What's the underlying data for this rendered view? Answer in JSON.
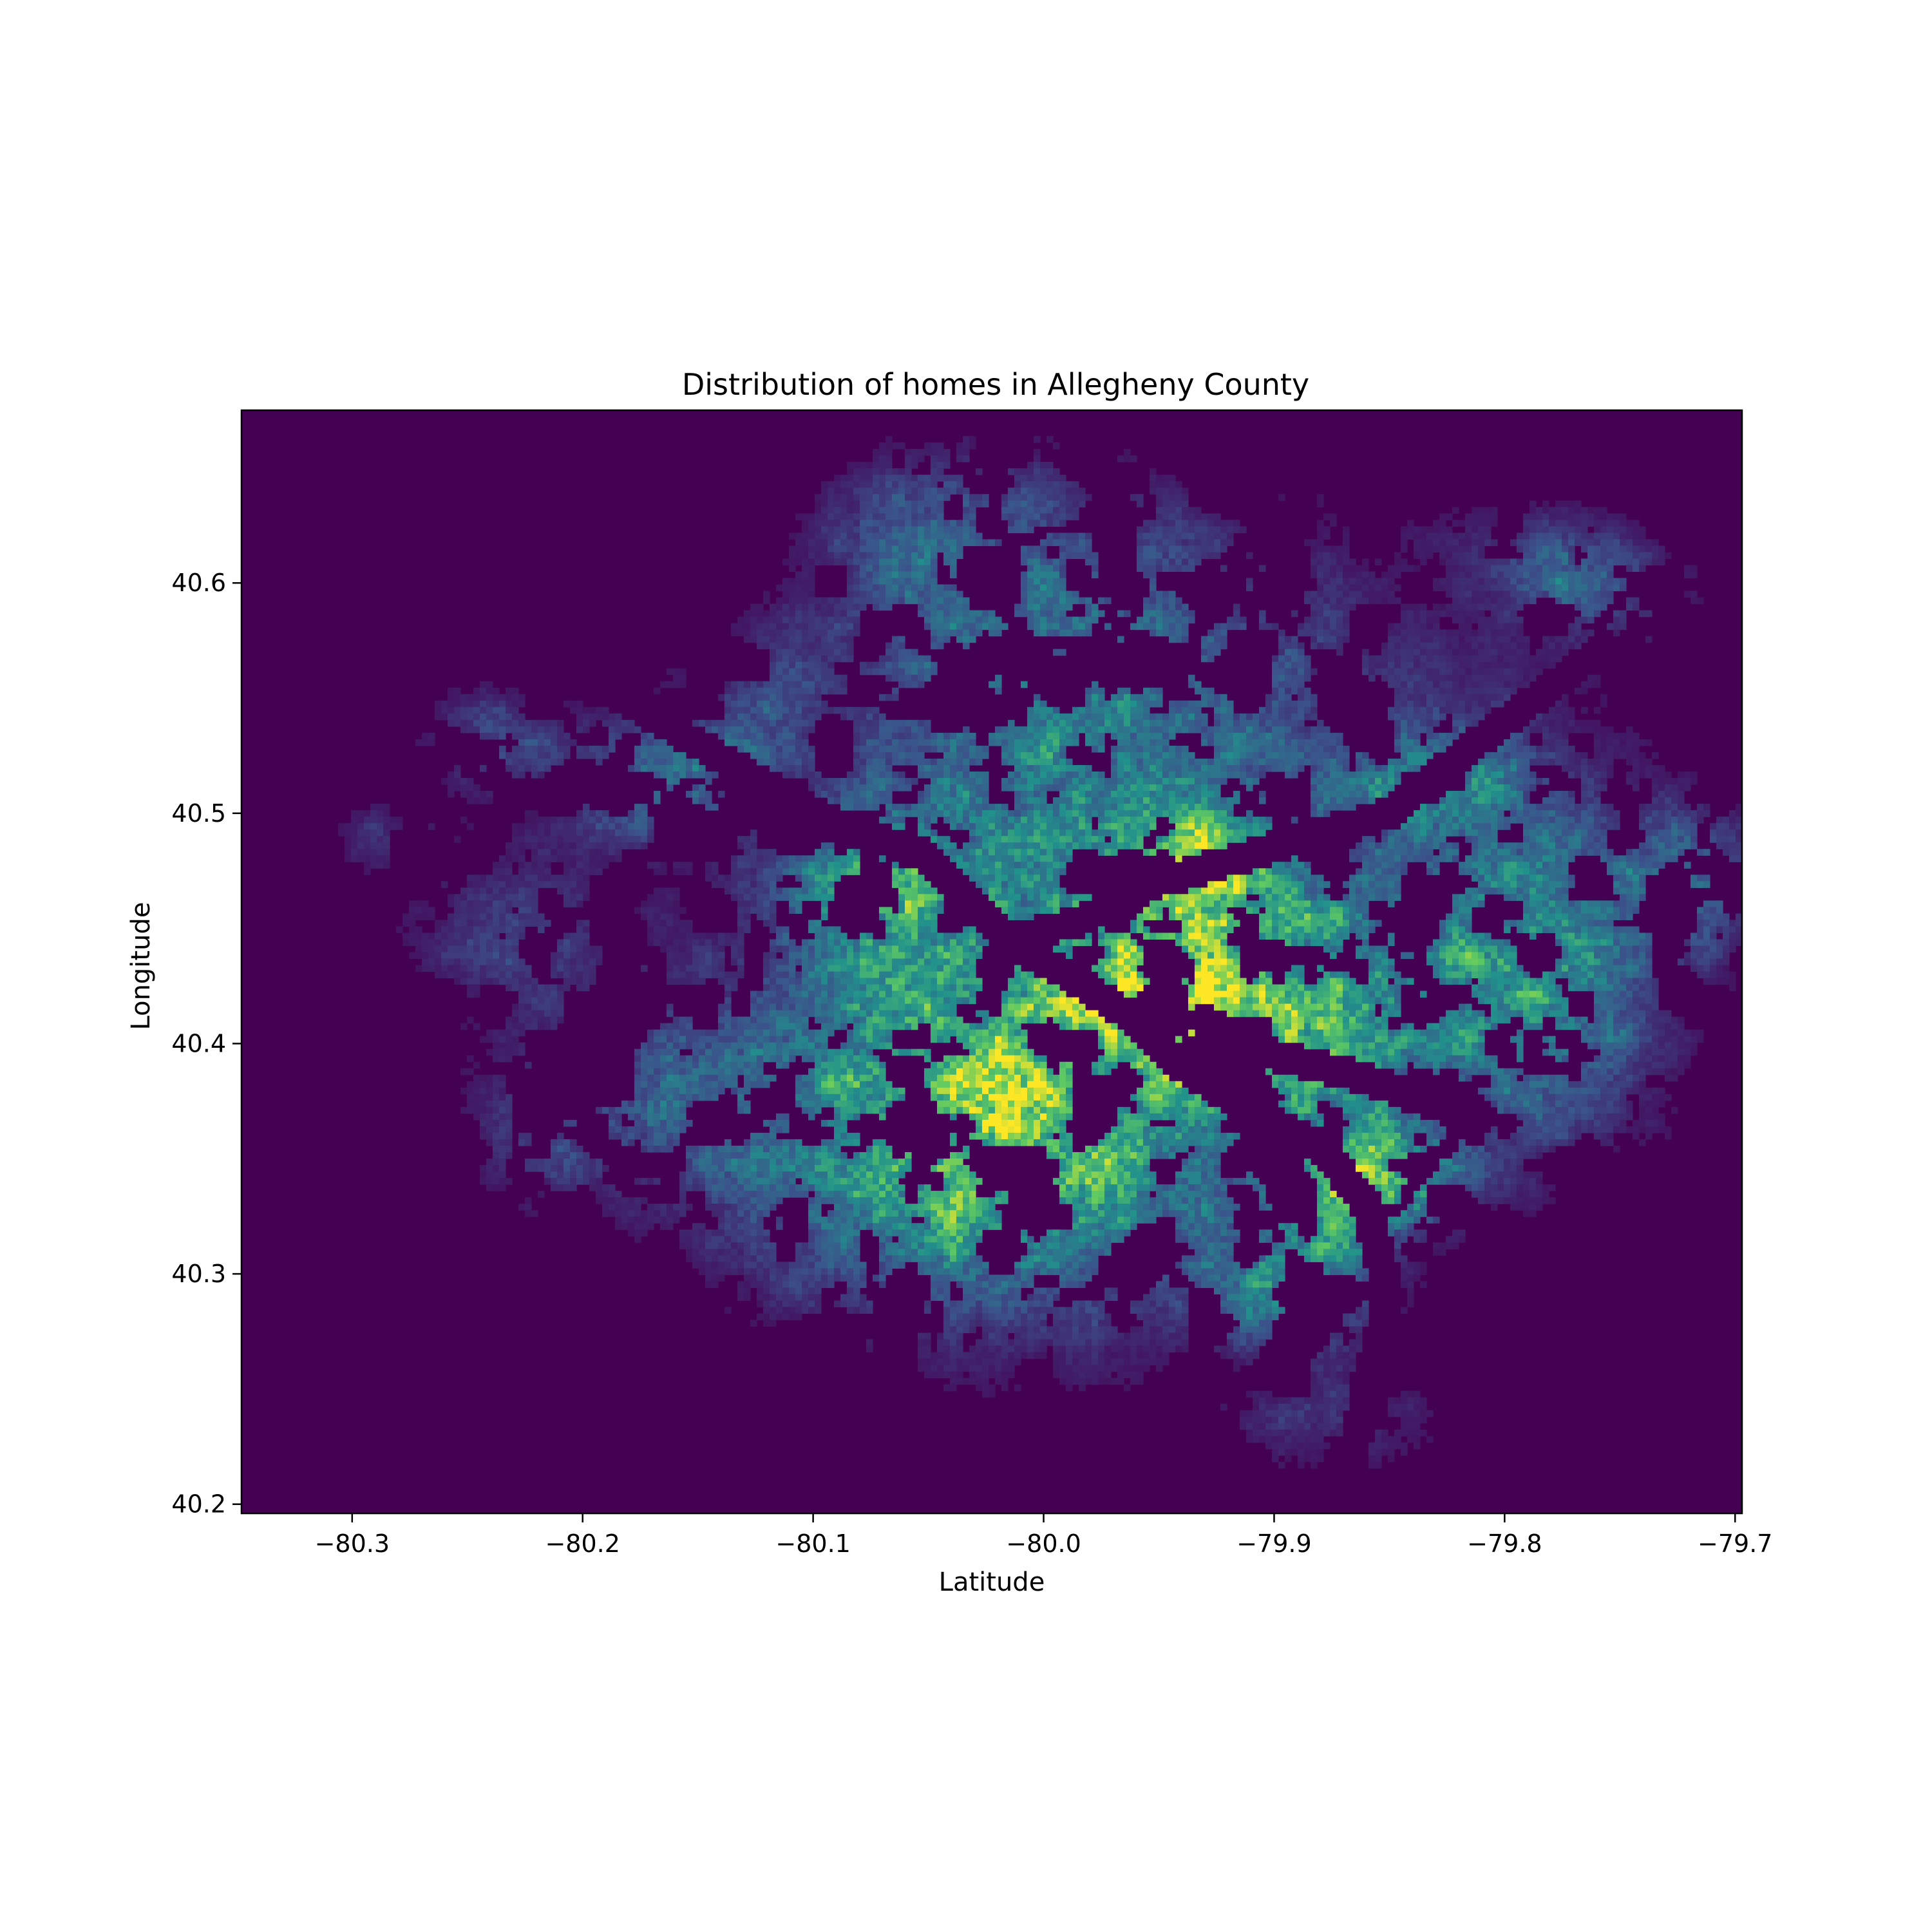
{
  "chart_data": {
    "type": "heatmap",
    "title": "Distribution of homes in Allegheny County",
    "xlabel": "Latitude",
    "ylabel": "Longitude",
    "xlim": [
      -80.348,
      -79.697
    ],
    "ylim": [
      40.196,
      40.675
    ],
    "x_ticks": [
      {
        "value": -80.3,
        "label": "−80.3"
      },
      {
        "value": -80.2,
        "label": "−80.2"
      },
      {
        "value": -80.1,
        "label": "−80.1"
      },
      {
        "value": -80.0,
        "label": "−80.0"
      },
      {
        "value": -79.9,
        "label": "−79.9"
      },
      {
        "value": -79.8,
        "label": "−79.8"
      },
      {
        "value": -79.7,
        "label": "−79.7"
      }
    ],
    "y_ticks": [
      {
        "value": 40.2,
        "label": "40.2"
      },
      {
        "value": 40.3,
        "label": "40.3"
      },
      {
        "value": 40.4,
        "label": "40.4"
      },
      {
        "value": 40.5,
        "label": "40.5"
      },
      {
        "value": 40.6,
        "label": "40.6"
      }
    ],
    "colormap": [
      "#440154",
      "#3b528b",
      "#21918c",
      "#5ec962",
      "#fde725"
    ],
    "background_color": "#440154",
    "grid": false,
    "legend": "none",
    "density_clusters": [
      {
        "x": -80.025,
        "y": 40.395,
        "sx": 0.07,
        "sy": 0.06,
        "peak": 0.8
      },
      {
        "x": -79.935,
        "y": 40.475,
        "sx": 0.03,
        "sy": 0.02,
        "peak": 0.78
      },
      {
        "x": -79.94,
        "y": 40.42,
        "sx": 0.035,
        "sy": 0.02,
        "peak": 0.72
      },
      {
        "x": -79.845,
        "y": 40.34,
        "sx": 0.02,
        "sy": 0.015,
        "peak": 0.75
      },
      {
        "x": -79.755,
        "y": 40.61,
        "sx": 0.035,
        "sy": 0.02,
        "peak": 0.6
      },
      {
        "x": -80.165,
        "y": 40.515,
        "sx": 0.03,
        "sy": 0.02,
        "peak": 0.5
      },
      {
        "x": -80.075,
        "y": 40.47,
        "sx": 0.025,
        "sy": 0.02,
        "peak": 0.65
      },
      {
        "x": -79.88,
        "y": 40.41,
        "sx": 0.05,
        "sy": 0.04,
        "peak": 0.55
      },
      {
        "x": -79.88,
        "y": 40.33,
        "sx": 0.02,
        "sy": 0.03,
        "peak": 0.6
      },
      {
        "x": -79.9,
        "y": 40.29,
        "sx": 0.025,
        "sy": 0.015,
        "peak": 0.5
      },
      {
        "x": -80.02,
        "y": 40.34,
        "sx": 0.07,
        "sy": 0.04,
        "peak": 0.5
      },
      {
        "x": -80.0,
        "y": 40.56,
        "sx": 0.06,
        "sy": 0.06,
        "peak": 0.38
      },
      {
        "x": -79.8,
        "y": 40.46,
        "sx": 0.05,
        "sy": 0.05,
        "peak": 0.42
      },
      {
        "x": -79.72,
        "y": 40.47,
        "sx": 0.02,
        "sy": 0.02,
        "peak": 0.45
      },
      {
        "x": -80.24,
        "y": 40.53,
        "sx": 0.02,
        "sy": 0.015,
        "peak": 0.32
      },
      {
        "x": -80.23,
        "y": 40.45,
        "sx": 0.03,
        "sy": 0.025,
        "peak": 0.28
      },
      {
        "x": -80.17,
        "y": 40.38,
        "sx": 0.04,
        "sy": 0.03,
        "peak": 0.28
      },
      {
        "x": -80.22,
        "y": 40.36,
        "sx": 0.02,
        "sy": 0.02,
        "peak": 0.22
      },
      {
        "x": -79.87,
        "y": 40.23,
        "sx": 0.04,
        "sy": 0.02,
        "peak": 0.22
      },
      {
        "x": -79.94,
        "y": 40.545,
        "sx": 0.08,
        "sy": 0.05,
        "peak": 0.3
      },
      {
        "x": -79.83,
        "y": 40.515,
        "sx": 0.025,
        "sy": 0.015,
        "peak": 0.4
      },
      {
        "x": -79.78,
        "y": 40.41,
        "sx": 0.03,
        "sy": 0.04,
        "peak": 0.38
      },
      {
        "x": -80.29,
        "y": 40.49,
        "sx": 0.02,
        "sy": 0.01,
        "peak": 0.2
      },
      {
        "x": -80.05,
        "y": 40.62,
        "sx": 0.03,
        "sy": 0.03,
        "peak": 0.25
      },
      {
        "x": -80.12,
        "y": 40.55,
        "sx": 0.02,
        "sy": 0.02,
        "peak": 0.2
      }
    ],
    "rivers": [
      [
        [
          -80.2,
          40.56
        ],
        [
          -80.15,
          40.53
        ],
        [
          -80.1,
          40.5
        ],
        [
          -80.05,
          40.48
        ],
        [
          -80.015,
          40.444
        ],
        [
          -79.98,
          40.455
        ],
        [
          -79.95,
          40.47
        ],
        [
          -79.9,
          40.485
        ],
        [
          -79.85,
          40.5
        ],
        [
          -79.8,
          40.54
        ],
        [
          -79.76,
          40.57
        ]
      ],
      [
        [
          -80.015,
          40.444
        ],
        [
          -79.99,
          40.43
        ],
        [
          -79.96,
          40.41
        ],
        [
          -79.94,
          40.39
        ],
        [
          -79.91,
          40.37
        ],
        [
          -79.88,
          40.355
        ],
        [
          -79.86,
          40.33
        ],
        [
          -79.85,
          40.29
        ],
        [
          -79.86,
          40.25
        ],
        [
          -79.87,
          40.2
        ]
      ],
      [
        [
          -79.93,
          40.41
        ],
        [
          -79.9,
          40.395
        ],
        [
          -79.86,
          40.385
        ],
        [
          -79.82,
          40.37
        ]
      ]
    ]
  }
}
